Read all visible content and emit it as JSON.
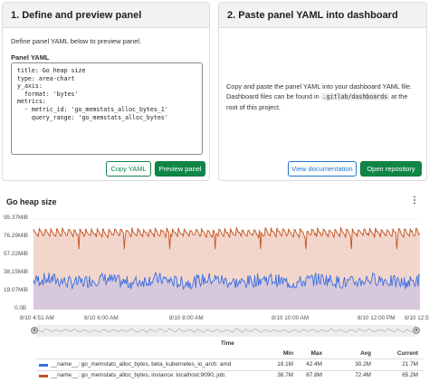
{
  "left_panel": {
    "title": "1. Define and preview panel",
    "description": "Define panel YAML below to preview panel.",
    "yaml_label": "Panel YAML",
    "yaml_text": "title: Go heap size\ntype: area-chart\ny_axis:\n  format: 'bytes'\nmetrics:\n  - metric_id: 'go_memstats_alloc_bytes_1'\n    query_range: 'go_memstats_alloc_bytes'",
    "copy_button": "Copy YAML",
    "preview_button": "Preview panel"
  },
  "right_panel": {
    "title": "2. Paste panel YAML into dashboard",
    "text_before": "Copy and paste the panel YAML into your dashboard YAML file. Dashboard files can be found in ",
    "code_path": ".gitlab/dashboards",
    "text_after": " at the root of this project.",
    "view_doc_button": "View documentation",
    "open_repo_button": "Open repository"
  },
  "chart": {
    "menu_icon": "kebab-menu-icon",
    "colors": {
      "series1": "#3a6fe0",
      "series2": "#c0501e",
      "fill2": "#f3d6cb",
      "fill1": "#d8c8dc"
    },
    "legend": {
      "time_header": "Time",
      "columns": [
        "Min",
        "Max",
        "Avg",
        "Current"
      ]
    }
  },
  "chart_data": {
    "type": "area",
    "title": "Go heap size",
    "y_ticks": [
      "95.37MiB",
      "76.29MiB",
      "57.22MiB",
      "38.15MiB",
      "19.07MiB",
      "0.0B"
    ],
    "ylim": [
      0,
      95.37
    ],
    "x_ticks": [
      "8/10 4:51 AM",
      "8/10 6:00 AM",
      "8/10 8:00 AM",
      "8/10 10:00 AM",
      "8/10 12:00 PM",
      "8/10 12:5"
    ],
    "grid": true,
    "legend_position": "bottom",
    "series": [
      {
        "name": "__name__: go_memstats_alloc_bytes, beta_kubernetes_io_arch: amd",
        "min": "19.1M",
        "max": "42.4M",
        "avg": "30.2M",
        "current": "21.7M",
        "low": 19.1,
        "high": 42.4,
        "mean": 30.2
      },
      {
        "name": "__name__: go_memstats_alloc_bytes, instance: localhost:9090, job:",
        "min": "38.7M",
        "max": "87.8M",
        "avg": "72.4M",
        "current": "65.2M",
        "low": 38.7,
        "high": 87.8,
        "mean": 72.4
      }
    ]
  }
}
